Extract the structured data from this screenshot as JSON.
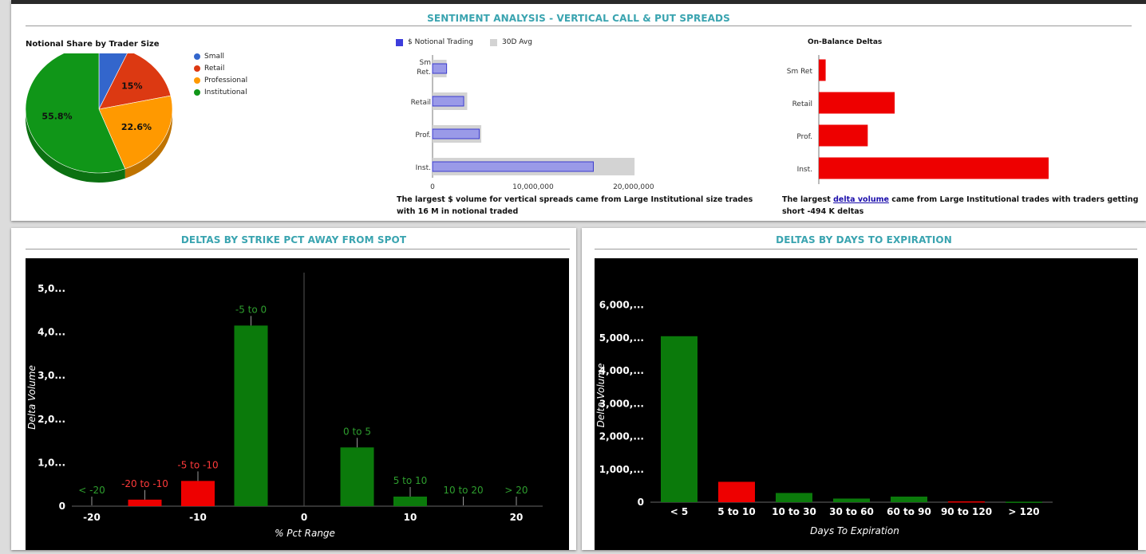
{
  "sentiment": {
    "title": "SENTIMENT ANALYSIS - VERTICAL CALL & PUT SPREADS",
    "pie": {
      "title": "Notional Share by Trader Size",
      "legend": [
        {
          "label": "Small",
          "color": "#3366cc"
        },
        {
          "label": "Retail",
          "color": "#dc3912"
        },
        {
          "label": "Professional",
          "color": "#ff9900"
        },
        {
          "label": "Institutional",
          "color": "#109618"
        }
      ]
    },
    "notional": {
      "legend_series": "$ Notional Trading",
      "legend_avg": "30D Avg",
      "ticks": [
        "0",
        "10,000,000",
        "20,000,000"
      ],
      "note": "The largest $ volume for vertical spreads came from Large Institutional size trades with 16 M in notional traded"
    },
    "onbalance": {
      "title": "On-Balance Deltas",
      "note_pre": "The largest ",
      "note_link": "delta volume",
      "note_post": " came from Large Institutional trades with traders getting short -494 K deltas"
    }
  },
  "strike_panel": {
    "title": "DELTAS BY STRIKE PCT AWAY FROM SPOT"
  },
  "expiry_panel": {
    "title": "DELTAS BY DAYS TO EXPIRATION"
  },
  "chart_data": [
    {
      "type": "pie",
      "title": "Notional Share by Trader Size",
      "categories": [
        "Small",
        "Retail",
        "Professional",
        "Institutional"
      ],
      "values": [
        6.6,
        15.0,
        22.6,
        55.8
      ],
      "data_labels": [
        "",
        "15%",
        "22.6%",
        "55.8%"
      ],
      "colors": [
        "#3366cc",
        "#dc3912",
        "#ff9900",
        "#109618"
      ],
      "legend": "right"
    },
    {
      "type": "bar",
      "orientation": "horizontal",
      "categories": [
        "Sm Ret.",
        "Retail",
        "Prof.",
        "Inst."
      ],
      "series": [
        {
          "name": "$ Notional Trading",
          "values": [
            1400000,
            3100000,
            4650000,
            16000000
          ],
          "color": "#9a9ae8"
        },
        {
          "name": "30D Avg",
          "values": [
            1400000,
            3450000,
            4850000,
            20100000
          ],
          "color": "#d3d3d3"
        }
      ],
      "xlim": [
        0,
        27000000
      ],
      "xticks": [
        "0",
        "10,000,000",
        "20,000,000"
      ],
      "legend": "top"
    },
    {
      "type": "bar",
      "orientation": "horizontal",
      "title": "On-Balance Deltas",
      "categories": [
        "Sm Ret",
        "Retail",
        "Prof.",
        "Inst."
      ],
      "values": [
        -14000,
        -155000,
        -100000,
        -494000
      ],
      "color": "#ee0000"
    },
    {
      "type": "bar",
      "title": "DELTAS BY STRIKE PCT AWAY FROM SPOT",
      "xlabel": "% Pct Range",
      "ylabel": "Delta Volume",
      "categories": [
        "< -20",
        "-20 to -10",
        "-5 to -10",
        "-5 to 0",
        "0 to 5",
        "5 to 10",
        "10 to 20",
        "> 20"
      ],
      "x": [
        -20,
        -15,
        -10,
        -5,
        5,
        10,
        15,
        20
      ],
      "values": [
        0,
        150,
        580,
        4150,
        1350,
        220,
        0,
        0
      ],
      "colors": [
        "#0b7a0b",
        "#ee0000",
        "#ee0000",
        "#0b7a0b",
        "#0b7a0b",
        "#0b7a0b",
        "#0b7a0b",
        "#0b7a0b"
      ],
      "label_colors": [
        "#2e9e2e",
        "#ff3a3a",
        "#ff3a3a",
        "#2e9e2e",
        "#2e9e2e",
        "#2e9e2e",
        "#2e9e2e",
        "#2e9e2e"
      ],
      "xlim": [
        -20,
        20
      ],
      "ylim": [
        0,
        5000
      ],
      "xticks": [
        "-20",
        "-10",
        "0",
        "10",
        "20"
      ],
      "yticks": [
        "0",
        "1,0...",
        "2,0...",
        "3,0...",
        "4,0...",
        "5,0..."
      ]
    },
    {
      "type": "bar",
      "title": "DELTAS BY DAYS TO EXPIRATION",
      "xlabel": "Days To Expiration",
      "ylabel": "Delta Volume",
      "categories": [
        "< 5",
        "5 to 10",
        "10 to 30",
        "30 to 60",
        "60 to 90",
        "90 to 120",
        "> 120"
      ],
      "values": [
        5050,
        620,
        280,
        110,
        170,
        25,
        15
      ],
      "colors": [
        "#0b7a0b",
        "#ee0000",
        "#0b7a0b",
        "#0b7a0b",
        "#0b7a0b",
        "#ee0000",
        "#0b7a0b"
      ],
      "ylim": [
        0,
        6500
      ],
      "yticks": [
        "0",
        "1,000,...",
        "2,000,...",
        "3,000,...",
        "4,000,...",
        "5,000,...",
        "6,000,..."
      ]
    }
  ]
}
